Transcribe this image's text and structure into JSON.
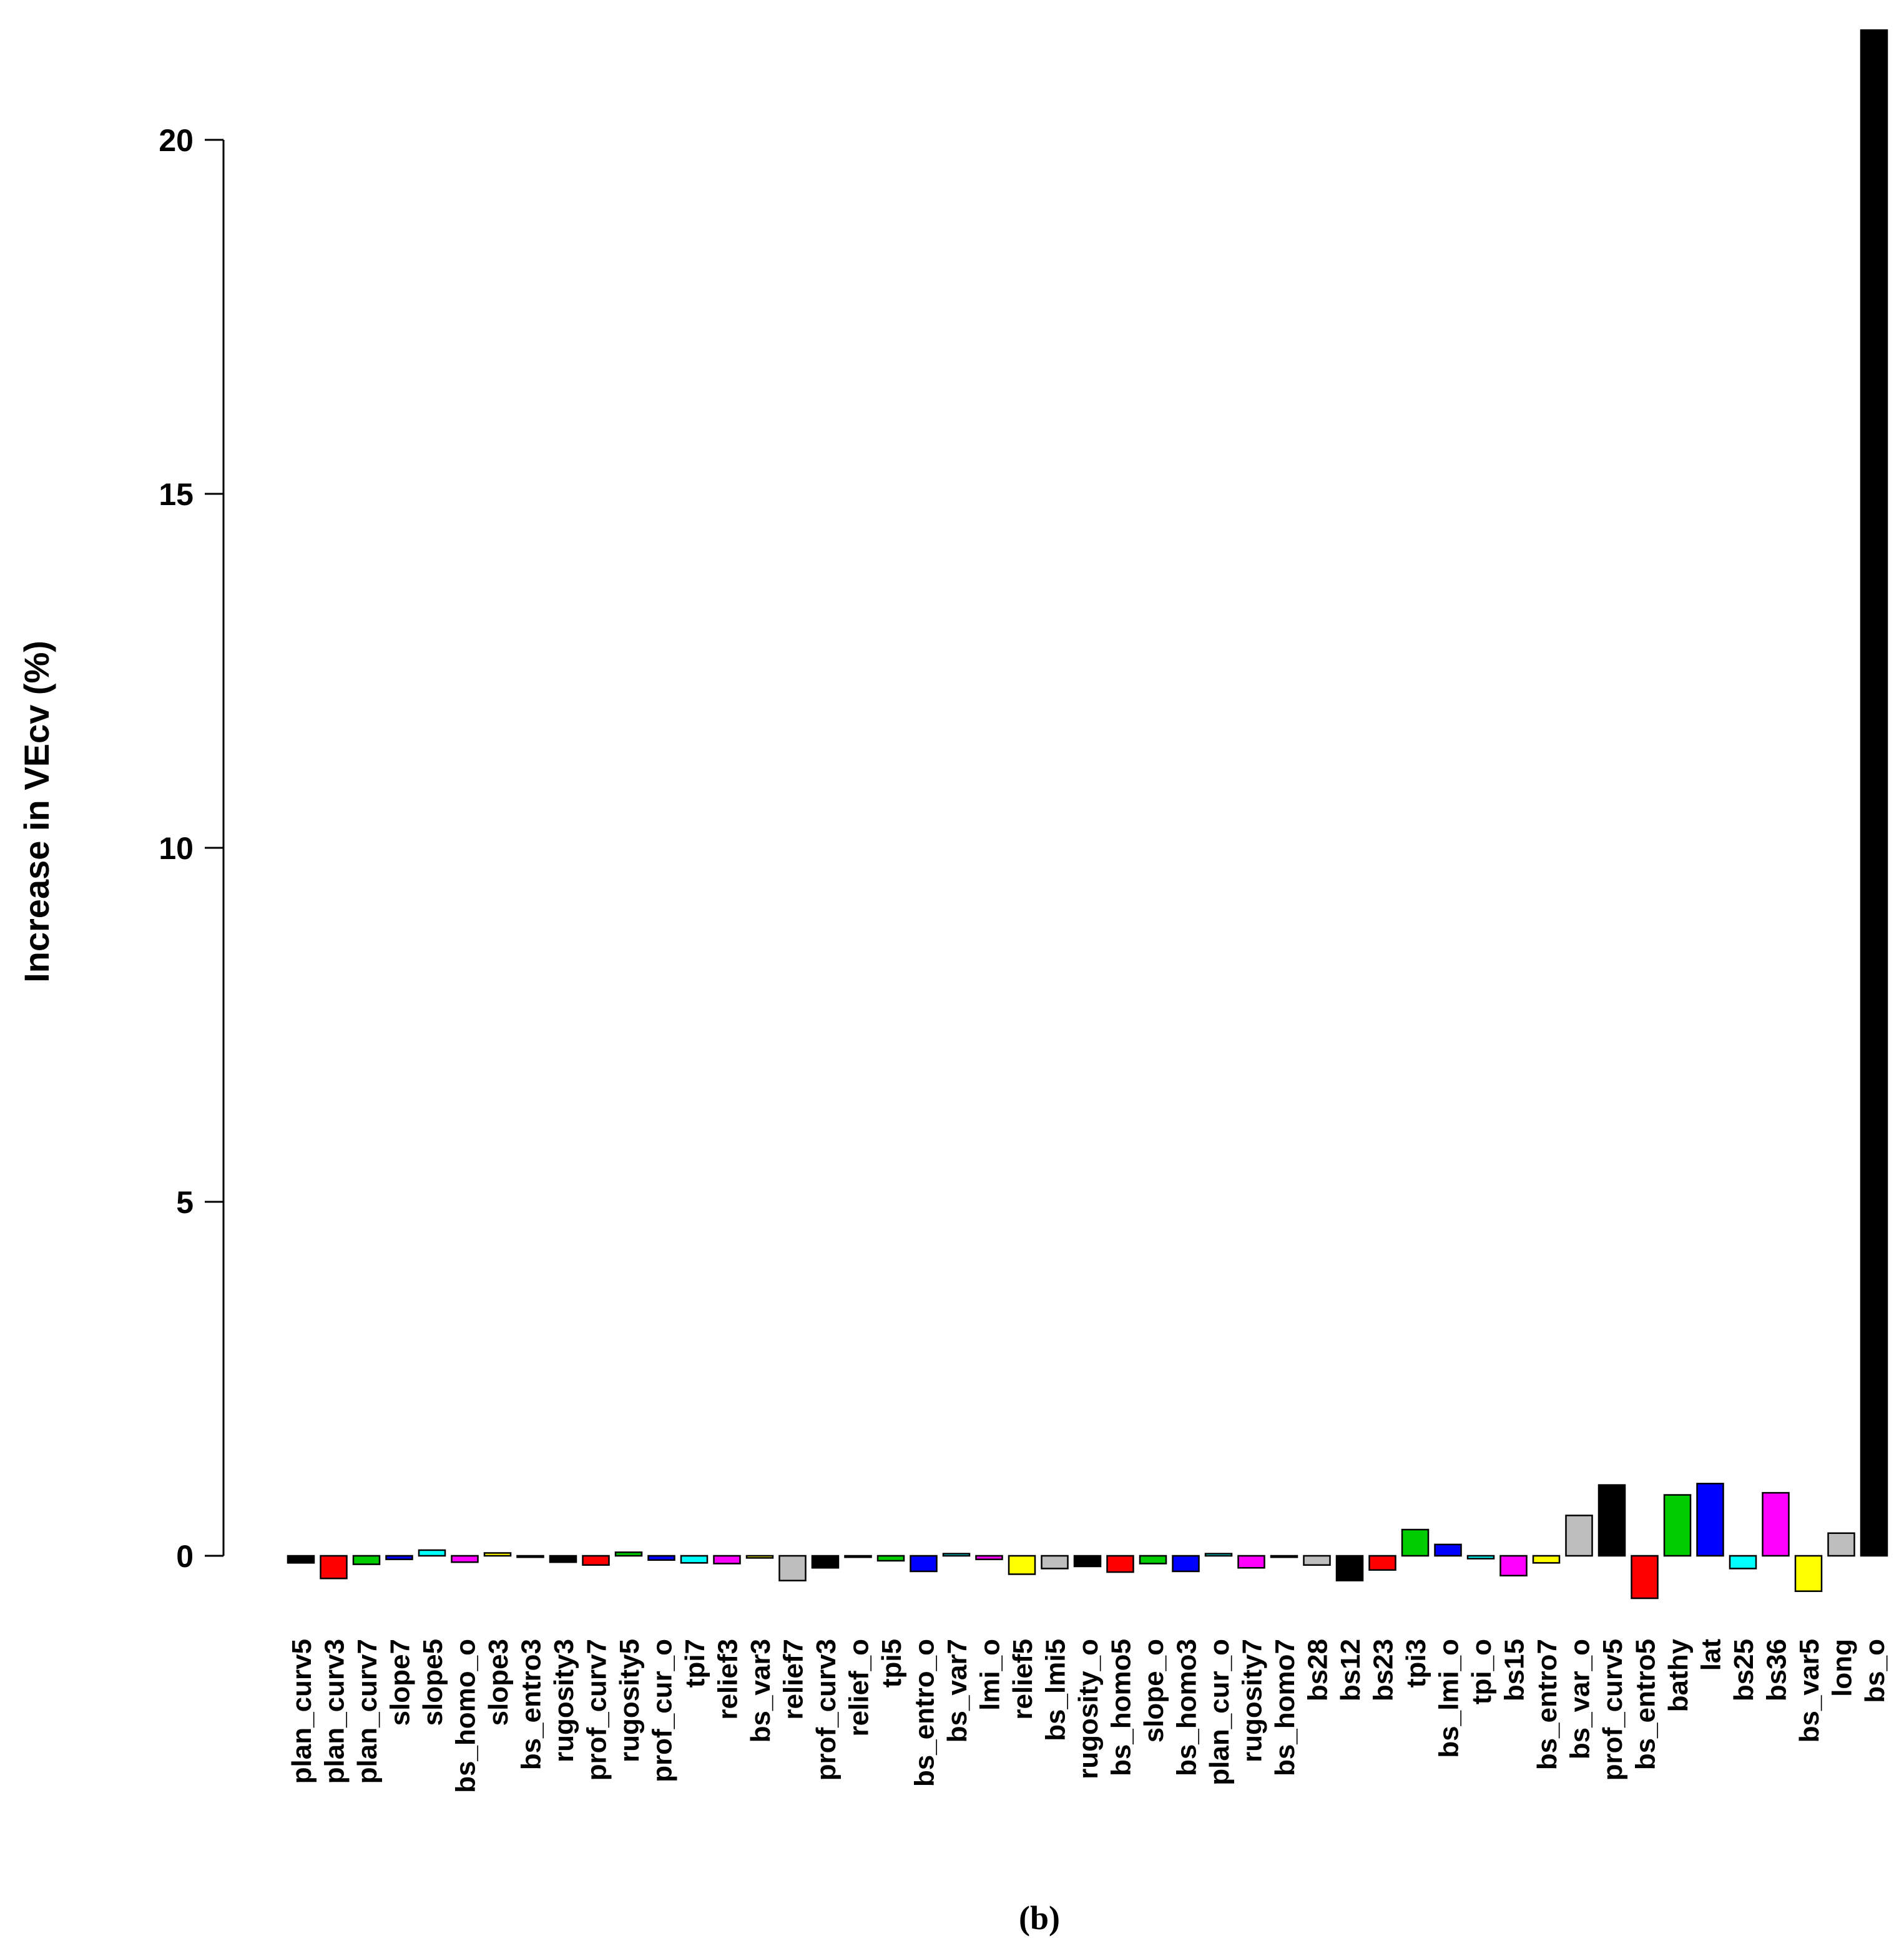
{
  "chart_data": {
    "type": "bar",
    "ylabel": "Increase in VEcv (%)",
    "caption": "(b)",
    "yticks": [
      "0",
      "5",
      "10",
      "15",
      "20"
    ],
    "ylim": [
      -1.0,
      21.6
    ],
    "categories": [
      "plan_curv5",
      "plan_curv3",
      "plan_curv7",
      "slope7",
      "slope5",
      "bs_homo_o",
      "slope3",
      "bs_entro3",
      "rugosity3",
      "prof_curv7",
      "rugosity5",
      "prof_cur_o",
      "tpi7",
      "relief3",
      "bs_var3",
      "relief7",
      "prof_curv3",
      "relief_o",
      "tpi5",
      "bs_entro_o",
      "bs_var7",
      "lmi_o",
      "relief5",
      "bs_lmi5",
      "rugosity_o",
      "bs_homo5",
      "slope_o",
      "bs_homo3",
      "plan_cur_o",
      "rugosity7",
      "bs_homo7",
      "bs28",
      "bs12",
      "bs23",
      "tpi3",
      "bs_lmi_o",
      "tpi_o",
      "bs15",
      "bs_entro7",
      "bs_var_o",
      "prof_curv5",
      "bs_entro5",
      "bathy",
      "lat",
      "bs25",
      "bs36",
      "bs_var5",
      "long",
      "bs_o"
    ],
    "values": [
      -0.1,
      -0.32,
      -0.12,
      -0.05,
      0.08,
      -0.09,
      0.04,
      -0.02,
      -0.09,
      -0.13,
      0.05,
      -0.06,
      -0.1,
      -0.11,
      -0.03,
      -0.35,
      -0.17,
      -0.02,
      -0.07,
      -0.22,
      0.03,
      -0.05,
      -0.26,
      -0.18,
      -0.15,
      -0.23,
      -0.11,
      -0.22,
      0.03,
      -0.17,
      -0.02,
      -0.13,
      -0.35,
      -0.2,
      0.37,
      0.16,
      -0.04,
      -0.28,
      -0.1,
      0.57,
      1.0,
      -0.6,
      0.86,
      1.02,
      -0.18,
      0.89,
      -0.5,
      0.32,
      21.55
    ],
    "colors": [
      "#000000",
      "#ff0000",
      "#00cd00",
      "#0000ff",
      "#00ffff",
      "#ff00ff",
      "#ffff00",
      "#bebebe"
    ],
    "grid": false,
    "legend": "none"
  }
}
